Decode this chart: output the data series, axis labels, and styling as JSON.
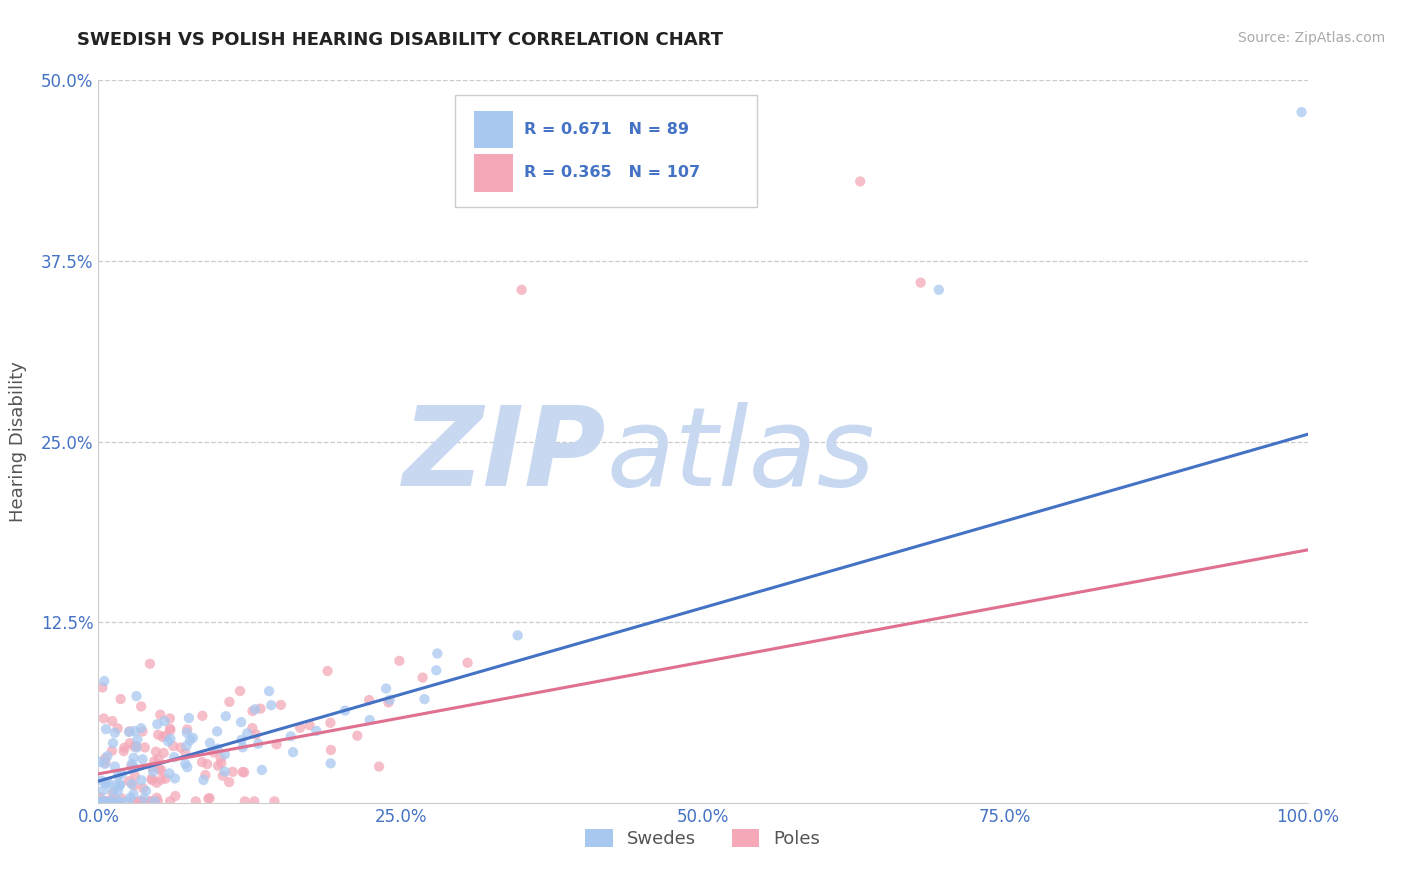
{
  "title": "SWEDISH VS POLISH HEARING DISABILITY CORRELATION CHART",
  "source_text": "Source: ZipAtlas.com",
  "ylabel": "Hearing Disability",
  "xlim": [
    0.0,
    1.0
  ],
  "ylim": [
    0.0,
    0.5
  ],
  "yticks": [
    0.0,
    0.125,
    0.25,
    0.375,
    0.5
  ],
  "ytick_labels": [
    "",
    "12.5%",
    "25.0%",
    "37.5%",
    "50.0%"
  ],
  "xticks": [
    0.0,
    0.25,
    0.5,
    0.75,
    1.0
  ],
  "xtick_labels": [
    "0.0%",
    "25.0%",
    "50.0%",
    "75.0%",
    "100.0%"
  ],
  "swedes_color": "#a8c8f0",
  "poles_color": "#f4a8b8",
  "swedes_line_color": "#4472c4",
  "poles_line_color": "#e07090",
  "swedes_R": 0.671,
  "swedes_N": 89,
  "poles_R": 0.365,
  "poles_N": 107,
  "legend_text_color": "#4472c4",
  "watermark_zip_color": "#c8d8f0",
  "watermark_atlas_color": "#c8d8f0",
  "grid_color": "#cccccc",
  "title_color": "#222222",
  "axis_label_color": "#555555",
  "tick_label_color": "#4472c4",
  "background_color": "#ffffff",
  "sw_line_x0": 0.0,
  "sw_line_y0": 0.015,
  "sw_line_x1": 1.0,
  "sw_line_y1": 0.255,
  "po_line_x0": 0.0,
  "po_line_y0": 0.02,
  "po_line_x1": 1.0,
  "po_line_y1": 0.175
}
